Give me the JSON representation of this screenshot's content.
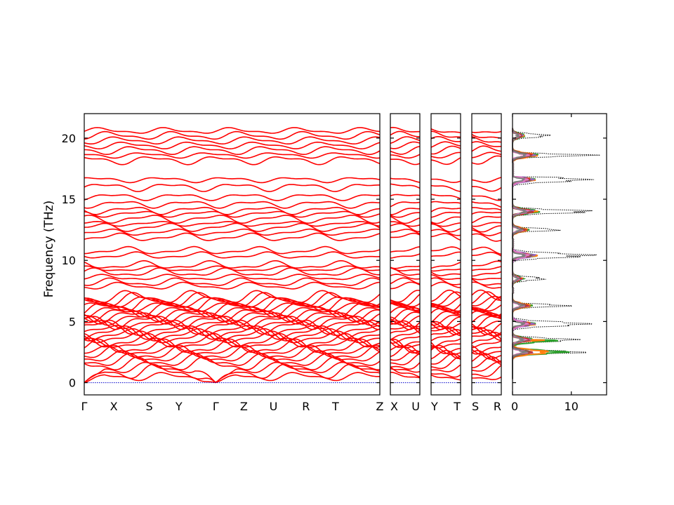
{
  "chart_data": {
    "type": "line",
    "title": "",
    "ylabel": "Frequency (THz)",
    "ylim": [
      -1,
      22
    ],
    "yticks": [
      0,
      5,
      10,
      15,
      20
    ],
    "colors": {
      "band": "#ff0000",
      "zero": "#0000cc",
      "total_dos": "#000000"
    },
    "band_panels": [
      {
        "labels": [
          "Γ",
          "X",
          "S",
          "Y",
          "Γ",
          "Z",
          "U",
          "R",
          "T",
          "Z"
        ],
        "label_positions": [
          0,
          0.1,
          0.22,
          0.32,
          0.445,
          0.54,
          0.64,
          0.75,
          0.85,
          1.0
        ]
      },
      {
        "labels": [
          "X",
          "U"
        ],
        "label_positions": [
          0,
          1
        ]
      },
      {
        "labels": [
          "Y",
          "T"
        ],
        "label_positions": [
          0,
          1
        ]
      },
      {
        "labels": [
          "S",
          "R"
        ],
        "label_positions": [
          0,
          1
        ]
      }
    ],
    "band_frequencies": [
      0.5,
      0.9,
      1.2,
      1.5,
      1.8,
      2.1,
      2.4,
      2.6,
      2.9,
      3.2,
      3.4,
      3.7,
      3.9,
      4.1,
      4.3,
      4.6,
      4.8,
      5.0,
      5.2,
      5.4,
      5.6,
      5.8,
      6.0,
      6.2,
      6.4,
      6.6,
      6.8,
      7.0,
      7.9,
      8.2,
      8.6,
      9.0,
      9.3,
      9.6,
      10.4,
      10.8,
      11.9,
      12.3,
      12.7,
      13.0,
      13.4,
      13.8,
      14.1,
      14.6,
      15.2,
      16.0,
      16.6,
      18.2,
      18.6,
      19.0,
      19.4,
      19.8,
      20.2,
      20.6
    ],
    "dos": {
      "xlabel": "",
      "xlim": [
        0,
        16
      ],
      "xticks": [
        0,
        10
      ],
      "series": [
        {
          "name": "",
          "color": "#2ca02c"
        },
        {
          "name": "",
          "color": "#ff7f0e"
        },
        {
          "name": "",
          "color": "#9467bd"
        },
        {
          "name": "",
          "color": "#d62728"
        },
        {
          "name": "",
          "color": "#8c564b"
        },
        {
          "name": "",
          "color": "#e377c2"
        },
        {
          "name": "",
          "color": "#7f7f7f"
        }
      ],
      "total_peaks": [
        {
          "f": 2.5,
          "v": 14
        },
        {
          "f": 3.5,
          "v": 12
        },
        {
          "f": 4.8,
          "v": 14
        },
        {
          "f": 6.3,
          "v": 11
        },
        {
          "f": 8.5,
          "v": 6
        },
        {
          "f": 10.4,
          "v": 15
        },
        {
          "f": 12.5,
          "v": 9
        },
        {
          "f": 14.0,
          "v": 15
        },
        {
          "f": 16.6,
          "v": 14
        },
        {
          "f": 18.6,
          "v": 15
        },
        {
          "f": 20.2,
          "v": 7
        }
      ]
    }
  }
}
